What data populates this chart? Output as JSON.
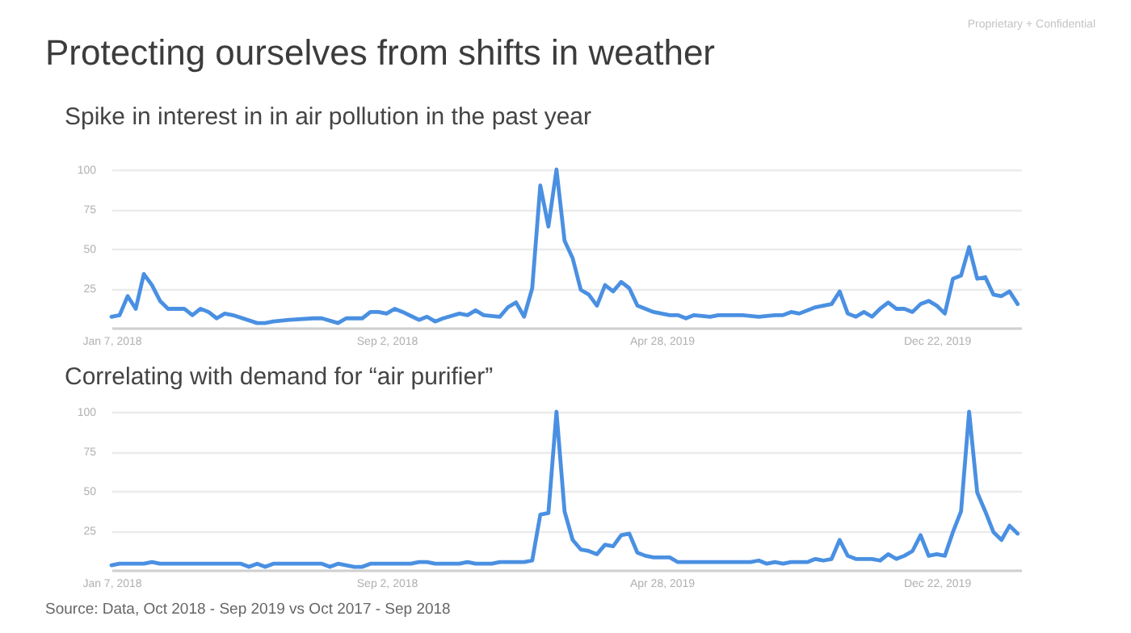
{
  "chart_data": [
    {
      "type": "line",
      "title": "Protecting ourselves from shifts in weather",
      "subtitle": "Spike in interest in in air pollution in the past year",
      "annotations": [
        "Proprietary + Confidential"
      ],
      "xlim": [
        "2018-01-07",
        "2020-03-04"
      ],
      "xticks": [
        {
          "value": "2018-01-07",
          "label": "Jan 7, 2018"
        },
        {
          "value": "2018-09-02",
          "label": "Sep 2, 2018"
        },
        {
          "value": "2019-04-28",
          "label": "Apr 28, 2019"
        },
        {
          "value": "2019-12-22",
          "label": "Dec 22, 2019"
        }
      ],
      "ylim": [
        0,
        100
      ],
      "yticks": [
        {
          "value": 0,
          "label": null
        },
        25,
        50,
        75,
        100
      ],
      "grid": "y",
      "x": [
        "2018-01-07",
        "2018-01-14",
        "2018-01-21",
        "2018-01-28",
        "2018-02-04",
        "2018-02-11",
        "2018-02-18",
        "2018-02-25",
        "2018-03-11",
        "2018-03-18",
        "2018-03-25",
        "2018-04-01",
        "2018-04-08",
        "2018-04-15",
        "2018-04-22",
        "2018-05-13",
        "2018-05-20",
        "2018-05-27",
        "2018-06-10",
        "2018-07-01",
        "2018-07-08",
        "2018-07-22",
        "2018-07-29",
        "2018-08-12",
        "2018-08-19",
        "2018-08-26",
        "2018-09-02",
        "2018-09-09",
        "2018-09-16",
        "2018-09-30",
        "2018-10-07",
        "2018-10-14",
        "2018-10-21",
        "2018-11-04",
        "2018-11-11",
        "2018-11-18",
        "2018-11-25",
        "2018-12-09",
        "2018-12-16",
        "2018-12-23",
        "2018-12-30",
        "2019-01-06",
        "2019-01-13",
        "2019-01-20",
        "2019-01-27",
        "2019-02-03",
        "2019-02-10",
        "2019-02-17",
        "2019-02-24",
        "2019-03-03",
        "2019-03-10",
        "2019-03-17",
        "2019-03-24",
        "2019-03-31",
        "2019-04-07",
        "2019-04-14",
        "2019-04-21",
        "2019-04-28",
        "2019-05-05",
        "2019-05-12",
        "2019-05-19",
        "2019-05-26",
        "2019-06-09",
        "2019-06-16",
        "2019-06-30",
        "2019-07-07",
        "2019-07-21",
        "2019-08-04",
        "2019-08-11",
        "2019-08-18",
        "2019-08-25",
        "2019-09-08",
        "2019-09-22",
        "2019-09-29",
        "2019-10-06",
        "2019-10-13",
        "2019-10-20",
        "2019-10-27",
        "2019-11-03",
        "2019-11-10",
        "2019-11-17",
        "2019-11-24",
        "2019-12-01",
        "2019-12-08",
        "2019-12-15",
        "2019-12-22",
        "2019-12-29",
        "2020-01-05",
        "2020-01-12",
        "2020-01-19",
        "2020-01-26",
        "2020-02-02",
        "2020-02-09",
        "2020-02-16",
        "2020-02-23",
        "2020-03-01"
      ],
      "series": [
        {
          "color": "#4a90e2",
          "values": [
            7,
            8,
            20,
            12,
            34,
            27,
            17,
            12,
            12,
            8,
            12,
            10,
            6,
            9,
            8,
            3,
            3,
            4,
            5,
            6,
            6,
            3,
            6,
            6,
            10,
            10,
            9,
            12,
            10,
            5,
            7,
            4,
            6,
            9,
            8,
            11,
            8,
            7,
            13,
            16,
            7,
            25,
            90,
            64,
            100,
            55,
            44,
            24,
            21,
            14,
            27,
            23,
            29,
            25,
            14,
            12,
            10,
            9,
            8,
            8,
            6,
            8,
            7,
            8,
            8,
            8,
            7,
            8,
            8,
            10,
            9,
            13,
            15,
            23,
            9,
            7,
            10,
            7,
            12,
            16,
            12,
            12,
            10,
            15,
            17,
            14,
            9,
            31,
            33,
            51,
            31,
            32,
            21,
            20,
            23,
            15
          ]
        }
      ]
    },
    {
      "type": "line",
      "title": "Correlating with demand for “air purifier”",
      "annotations": [
        "Source: Data, Oct 2018 - Sep 2019 vs Oct 2017 - Sep 2018"
      ],
      "xlim": [
        "2018-01-07",
        "2020-03-04"
      ],
      "xticks": [
        {
          "value": "2018-01-07",
          "label": "Jan 7, 2018"
        },
        {
          "value": "2018-09-02",
          "label": "Sep 2, 2018"
        },
        {
          "value": "2019-04-28",
          "label": "Apr 28, 2019"
        },
        {
          "value": "2019-12-22",
          "label": "Dec 22, 2019"
        }
      ],
      "ylim": [
        0,
        100
      ],
      "yticks": [
        {
          "value": 0,
          "label": null
        },
        25,
        50,
        75,
        100
      ],
      "grid": "y",
      "x": [
        "2018-01-07",
        "2018-01-14",
        "2018-02-04",
        "2018-02-11",
        "2018-02-18",
        "2018-04-29",
        "2018-05-06",
        "2018-05-13",
        "2018-05-20",
        "2018-05-27",
        "2018-07-08",
        "2018-07-15",
        "2018-07-22",
        "2018-08-05",
        "2018-08-12",
        "2018-08-19",
        "2018-09-23",
        "2018-09-30",
        "2018-10-07",
        "2018-10-14",
        "2018-11-04",
        "2018-11-11",
        "2018-11-18",
        "2018-12-02",
        "2018-12-09",
        "2018-12-30",
        "2019-01-06",
        "2019-01-13",
        "2019-01-20",
        "2019-01-27",
        "2019-02-03",
        "2019-02-10",
        "2019-02-17",
        "2019-02-24",
        "2019-03-03",
        "2019-03-10",
        "2019-03-17",
        "2019-03-24",
        "2019-03-31",
        "2019-04-07",
        "2019-04-14",
        "2019-04-21",
        "2019-05-05",
        "2019-05-12",
        "2019-07-14",
        "2019-07-21",
        "2019-07-28",
        "2019-08-04",
        "2019-08-11",
        "2019-08-18",
        "2019-09-01",
        "2019-09-08",
        "2019-09-15",
        "2019-09-22",
        "2019-09-29",
        "2019-10-06",
        "2019-10-13",
        "2019-10-27",
        "2019-11-03",
        "2019-11-10",
        "2019-11-17",
        "2019-11-24",
        "2019-12-01",
        "2019-12-08",
        "2019-12-15",
        "2019-12-22",
        "2019-12-29",
        "2020-01-05",
        "2020-01-12",
        "2020-01-19",
        "2020-01-26",
        "2020-02-02",
        "2020-02-09",
        "2020-02-16",
        "2020-02-23",
        "2020-03-01"
      ],
      "series": [
        {
          "color": "#4a90e2",
          "values": [
            3,
            4,
            4,
            5,
            4,
            4,
            2,
            4,
            2,
            4,
            4,
            2,
            4,
            2,
            2,
            4,
            4,
            5,
            5,
            4,
            4,
            5,
            4,
            4,
            5,
            5,
            6,
            35,
            36,
            100,
            37,
            19,
            13,
            12,
            10,
            16,
            15,
            22,
            23,
            11,
            9,
            8,
            8,
            5,
            5,
            6,
            4,
            5,
            4,
            5,
            5,
            7,
            6,
            7,
            19,
            9,
            7,
            7,
            6,
            10,
            7,
            9,
            12,
            22,
            9,
            10,
            9,
            24,
            37,
            100,
            49,
            37,
            24,
            19,
            28,
            23
          ]
        }
      ]
    }
  ]
}
